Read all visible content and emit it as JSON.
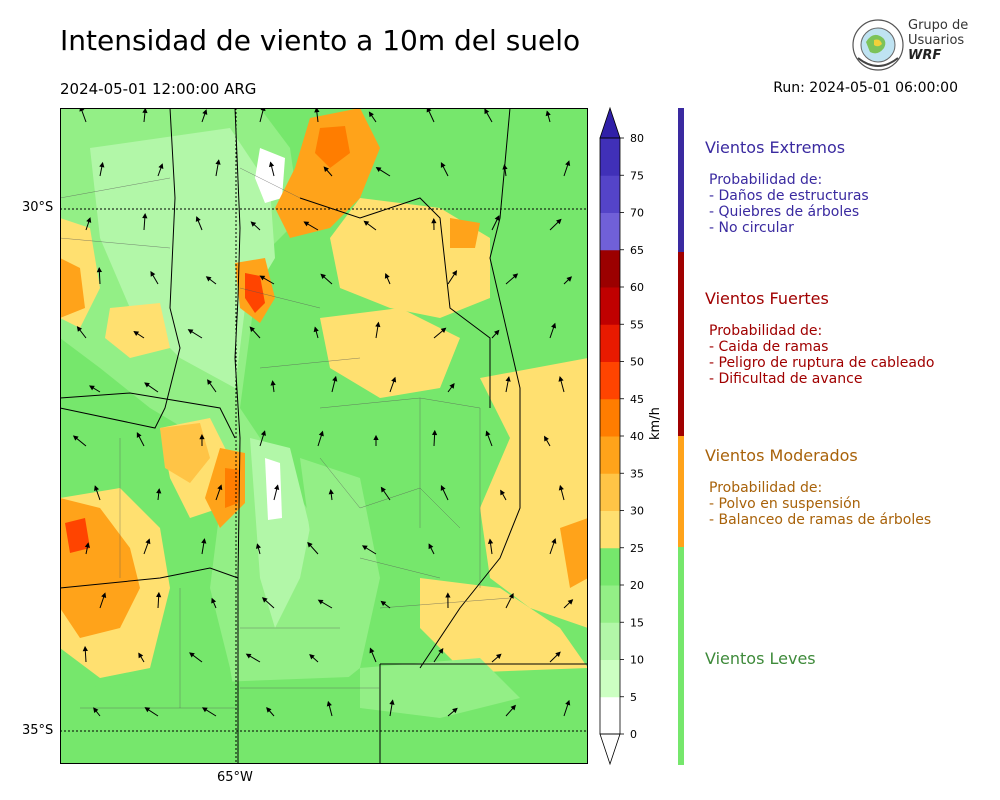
{
  "header": {
    "title": "Intensidad de viento a 10m del suelo",
    "valid_time": "2024-05-01 12:00:00 ARG",
    "run": "Run: 2024-05-01 06:00:00"
  },
  "logo": {
    "line1": "Grupo de",
    "line2": "Usuarios",
    "line3": "WRF"
  },
  "map": {
    "lat_labels": [
      "30°S",
      "35°S"
    ],
    "lon_labels": [
      "65°W"
    ]
  },
  "colorbar": {
    "unit": "km/h",
    "ticks": [
      "0",
      "5",
      "10",
      "15",
      "20",
      "25",
      "30",
      "35",
      "40",
      "45",
      "50",
      "55",
      "60",
      "65",
      "70",
      "75",
      "80"
    ],
    "colors": [
      "#ffffff",
      "#ccffc2",
      "#b2f7a8",
      "#93ef86",
      "#76e76c",
      "#ffe070",
      "#ffc446",
      "#ffa31a",
      "#ff7d00",
      "#ff4400",
      "#e81a00",
      "#c00000",
      "#9b0000",
      "#7060d8",
      "#5444c8",
      "#4030b8"
    ],
    "above_color": "#3020a8"
  },
  "categories": [
    {
      "title": "Vientos Extremos",
      "color": "#3a2aa0",
      "lines": [
        "Probabilidad de:",
        "- Daños de estructuras",
        "- Quiebres de árboles",
        "- No circular"
      ]
    },
    {
      "title": "Vientos Fuertes",
      "color": "#a00000",
      "lines": [
        "Probabilidad de:",
        "- Caida de ramas",
        "- Peligro de ruptura de cableado",
        "- Dificultad de avance"
      ]
    },
    {
      "title": "Vientos Moderados",
      "color": "#a8620a",
      "lines": [
        "Probabilidad de:",
        "- Polvo en suspensión",
        "- Balanceo de ramas de árboles"
      ]
    },
    {
      "title": "Vientos Leves",
      "color": "#3e8a3a",
      "lines": []
    }
  ],
  "category_bar_colors": [
    "#3a2aa0",
    "#a00000",
    "#ffa31a",
    "#76e76c"
  ]
}
